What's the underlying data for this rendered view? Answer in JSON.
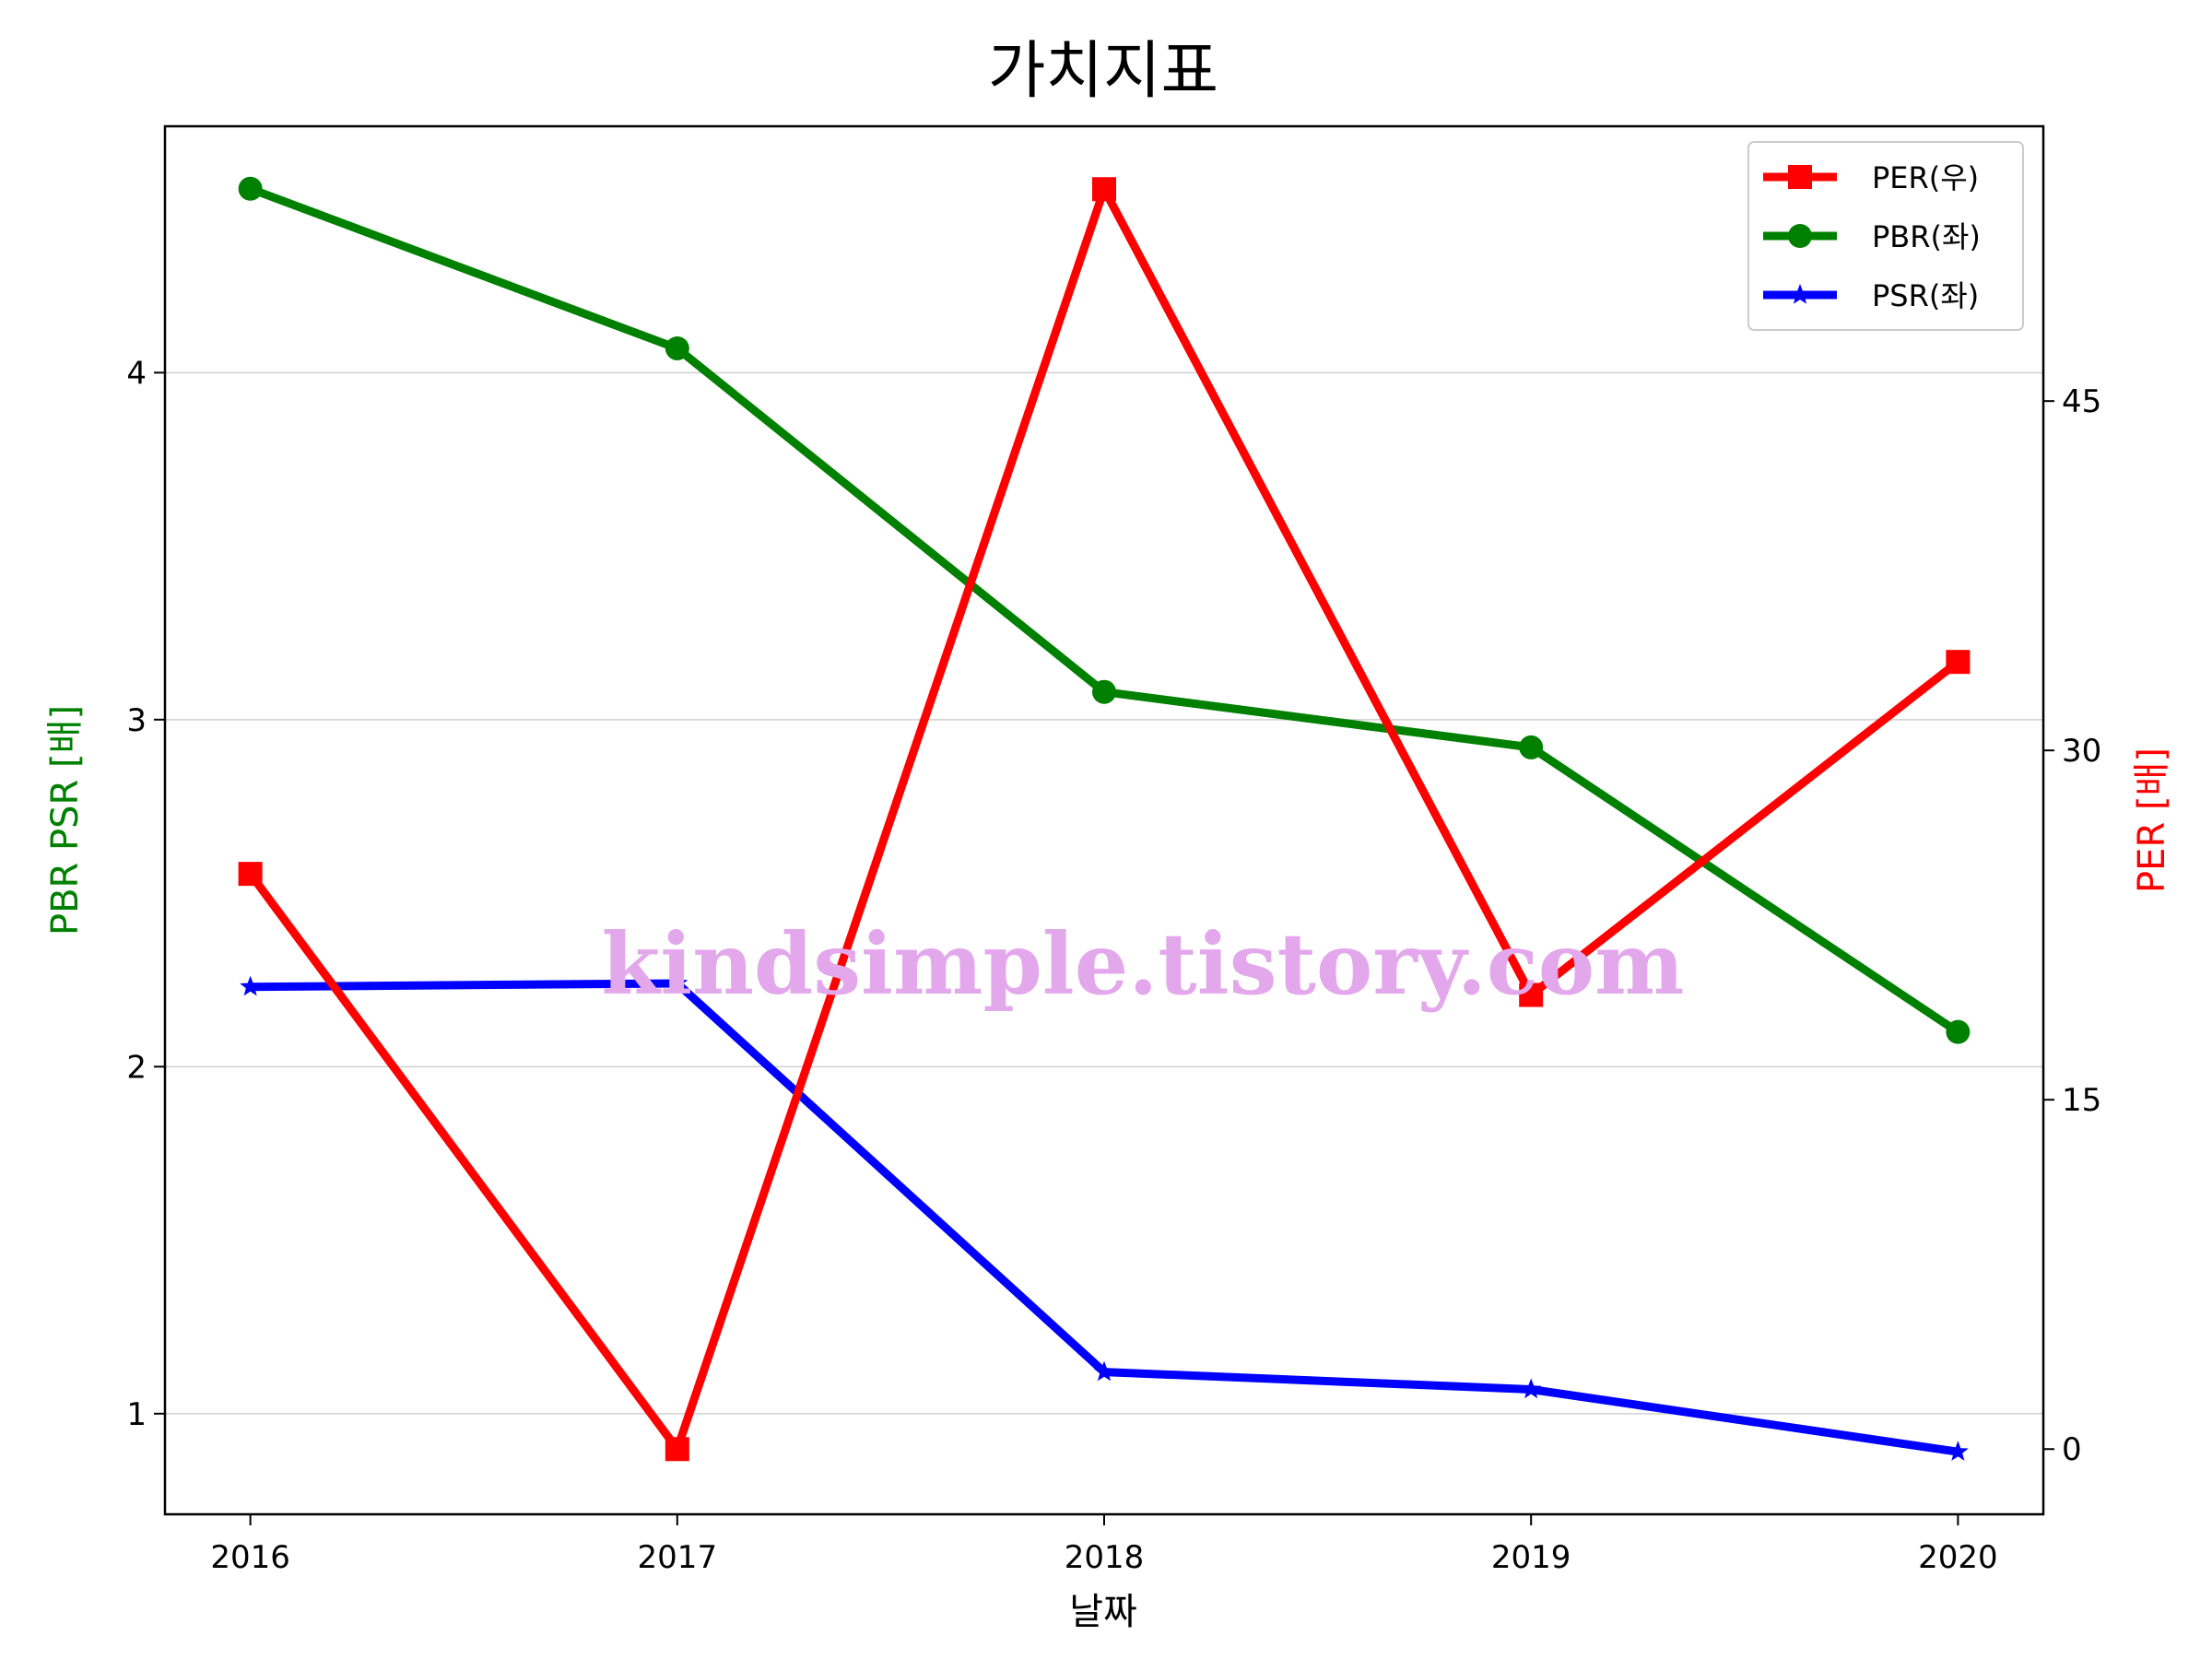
{
  "chart_data": {
    "type": "line",
    "title": "가치지표",
    "xlabel": "날짜",
    "ylabel_left": "PBR PSR [배]",
    "ylabel_right": "PER [배]",
    "categories": [
      "2016",
      "2017",
      "2018",
      "2019",
      "2020"
    ],
    "ylim_left": [
      0.71,
      4.71
    ],
    "yticks_left": [
      1,
      2,
      3,
      4
    ],
    "ylim_right": [
      -2.8,
      56.8
    ],
    "yticks_right": [
      0,
      15,
      30,
      45
    ],
    "grid": "horizontal (left axis)",
    "legend_position": "top-right",
    "series": [
      {
        "name": "PER(우)",
        "axis": "right",
        "color": "#ff0000",
        "marker": "square",
        "values": [
          24.7,
          0,
          54.1,
          19.5,
          33.8
        ]
      },
      {
        "name": "PBR(좌)",
        "axis": "left",
        "color": "#008000",
        "marker": "circle",
        "values": [
          4.53,
          4.07,
          3.08,
          2.92,
          2.1
        ]
      },
      {
        "name": "PSR(좌)",
        "axis": "left",
        "color": "#0000ff",
        "marker": "star",
        "values": [
          2.23,
          2.24,
          1.12,
          1.07,
          0.89
        ]
      }
    ],
    "watermark": "kindsimple.tistory.com"
  },
  "colors": {
    "left_axis_label": "#008000",
    "right_axis_label": "#ff0000",
    "watermark": "#e3a8ec"
  }
}
